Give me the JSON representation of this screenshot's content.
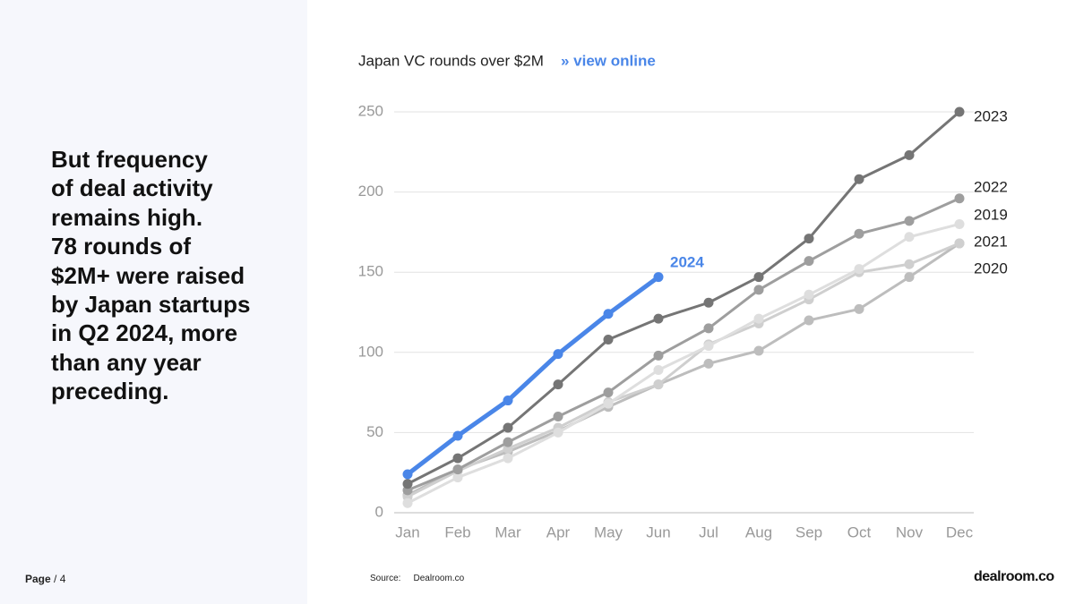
{
  "blurb": [
    "But frequency",
    "of deal activity",
    "remains high.",
    "78 rounds of",
    "$2M+ were raised",
    "by Japan startups",
    "in Q2 2024, more",
    "than any year",
    "preceding."
  ],
  "footer": {
    "page_label": "Page",
    "page_number": "/ 4",
    "source_label": "Source:",
    "source": "Dealroom.co",
    "logo": "dealroom.co"
  },
  "chart_data": {
    "type": "line",
    "title": "Japan VC rounds over $2M",
    "link": "» view online",
    "categories": [
      "Jan",
      "Feb",
      "Mar",
      "Apr",
      "May",
      "Jun",
      "Jul",
      "Aug",
      "Sep",
      "Oct",
      "Nov",
      "Dec"
    ],
    "ylim": [
      0,
      250
    ],
    "yticks": [
      0,
      50,
      100,
      150,
      200,
      250
    ],
    "grid": true,
    "series": [
      {
        "name": "2020",
        "color": "#bdbdbd",
        "values": [
          11,
          27,
          38,
          51,
          66,
          80,
          93,
          101,
          120,
          127,
          147,
          168
        ]
      },
      {
        "name": "2021",
        "color": "#cfcfcf",
        "values": [
          10,
          26,
          40,
          53,
          69,
          80,
          105,
          118,
          133,
          150,
          155,
          168
        ]
      },
      {
        "name": "2019",
        "color": "#dedede",
        "values": [
          6,
          22,
          34,
          50,
          68,
          89,
          104,
          121,
          136,
          152,
          172,
          180
        ]
      },
      {
        "name": "2022",
        "color": "#9e9e9e",
        "values": [
          14,
          27,
          44,
          60,
          75,
          98,
          115,
          139,
          157,
          174,
          182,
          196
        ]
      },
      {
        "name": "2023",
        "color": "#757575",
        "values": [
          18,
          34,
          53,
          80,
          108,
          121,
          131,
          147,
          171,
          208,
          223,
          250
        ]
      },
      {
        "name": "2024",
        "color": "#4a86e8",
        "values": [
          24,
          48,
          70,
          99,
          124,
          147,
          null,
          null,
          null,
          null,
          null,
          null
        ]
      }
    ]
  }
}
